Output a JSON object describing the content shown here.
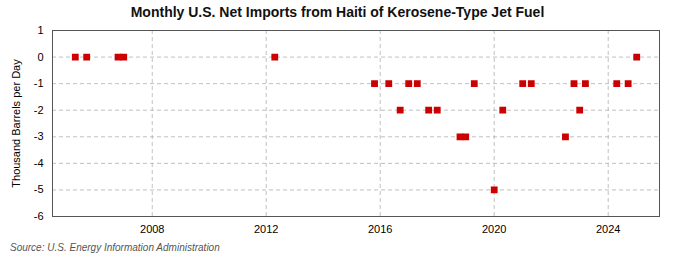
{
  "chart_data": {
    "type": "scatter",
    "title": "Monthly U.S. Net Imports from Haiti of Kerosene-Type Jet Fuel",
    "y_label": "Thousand Barrels per Day",
    "source": "Source: U.S. Energy Information Administration",
    "x": [
      2005.3,
      2005.7,
      2006.8,
      2007.0,
      2012.3,
      2015.8,
      2016.3,
      2016.7,
      2017.0,
      2017.3,
      2017.7,
      2018.0,
      2018.8,
      2019.0,
      2019.3,
      2020.0,
      2020.3,
      2021.0,
      2021.3,
      2022.5,
      2022.8,
      2023.0,
      2023.2,
      2024.3,
      2024.7,
      2025.0
    ],
    "values": [
      0,
      0,
      0,
      0,
      0,
      -1,
      -1,
      -2,
      -1,
      -1,
      -2,
      -2,
      -3,
      -3,
      -1,
      -5,
      -2,
      -1,
      -1,
      -3,
      -1,
      -2,
      -1,
      -1,
      -1,
      0
    ],
    "color": "#cc0000",
    "marker": "square",
    "xlim": [
      2004.5,
      2025.8
    ],
    "xticks": [
      2008,
      2012,
      2016,
      2020,
      2024
    ],
    "ylim": [
      -6,
      1
    ],
    "yticks": [
      1,
      0,
      -1,
      -2,
      -3,
      -4,
      -5,
      -6
    ],
    "grid": true
  }
}
